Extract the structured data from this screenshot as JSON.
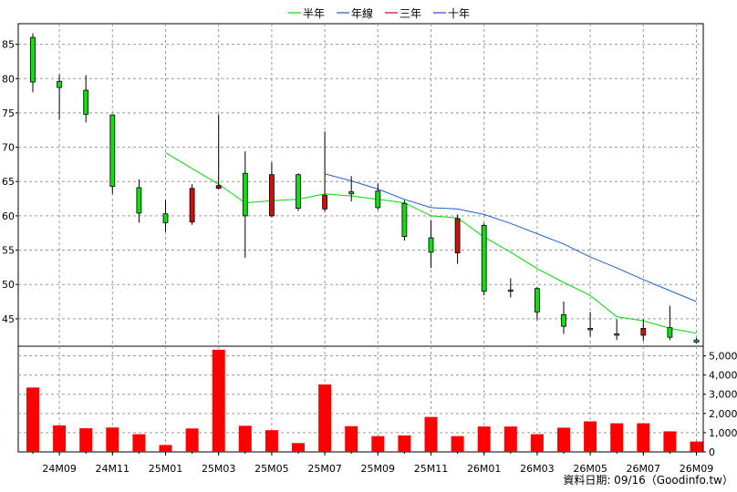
{
  "legend": [
    {
      "label": "半年",
      "color": "#00dd00"
    },
    {
      "label": "年線",
      "color": "#1a5fd6"
    },
    {
      "label": "三年",
      "color": "#cc0022"
    },
    {
      "label": "十年",
      "color": "#5533cc"
    }
  ],
  "footer": "資料日期: 09/16（Goodinfo.tw）",
  "colors": {
    "up": "#11dd11",
    "down": "#cc1111",
    "volume": "#ff0000",
    "grid": "#999999"
  },
  "chart_data": [
    {
      "type": "candlestick",
      "title": "",
      "ylim": [
        41,
        88
      ],
      "yticks": [
        45,
        50,
        55,
        60,
        65,
        70,
        75,
        80,
        85
      ],
      "grid": true,
      "legend_position": "top-center",
      "categories": [
        "24M08",
        "24M09",
        "24M10",
        "24M11",
        "24M12",
        "25M01",
        "25M02",
        "25M03",
        "25M04",
        "25M05",
        "25M06",
        "25M07",
        "25M08",
        "25M09",
        "25M10",
        "25M11",
        "25M12",
        "26M01",
        "26M02",
        "26M03",
        "26M04",
        "26M05",
        "26M06",
        "26M07",
        "26M08",
        "26M09"
      ],
      "xtick_labels": [
        "24M09",
        "24M11",
        "25M01",
        "25M03",
        "25M05",
        "25M07",
        "25M09",
        "25M11",
        "26M01",
        "26M03",
        "26M05",
        "26M07",
        "26M09"
      ],
      "candles": [
        {
          "open": 79.5,
          "close": 86.0,
          "high": 86.6,
          "low": 78.0
        },
        {
          "open": 78.7,
          "close": 79.6,
          "high": 80.6,
          "low": 74.0
        },
        {
          "open": 74.8,
          "close": 78.3,
          "high": 80.5,
          "low": 73.6
        },
        {
          "open": 64.3,
          "close": 74.7,
          "high": 74.8,
          "low": 63.2
        },
        {
          "open": 60.4,
          "close": 64.1,
          "high": 65.3,
          "low": 59.0
        },
        {
          "open": 59.0,
          "close": 60.3,
          "high": 62.3,
          "low": 57.7
        },
        {
          "open": 64.0,
          "close": 59.1,
          "high": 64.6,
          "low": 58.7
        },
        {
          "open": 64.4,
          "close": 64.0,
          "high": 74.8,
          "low": 63.9
        },
        {
          "open": 60.0,
          "close": 66.2,
          "high": 69.4,
          "low": 53.9
        },
        {
          "open": 66.0,
          "close": 60.0,
          "high": 67.8,
          "low": 59.8
        },
        {
          "open": 61.1,
          "close": 66.0,
          "high": 66.2,
          "low": 60.7
        },
        {
          "open": 63.0,
          "close": 61.0,
          "high": 72.3,
          "low": 60.6
        },
        {
          "open": 63.2,
          "close": 63.5,
          "high": 65.8,
          "low": 62.1
        },
        {
          "open": 61.2,
          "close": 63.6,
          "high": 64.7,
          "low": 60.9
        },
        {
          "open": 57.0,
          "close": 61.8,
          "high": 62.3,
          "low": 56.4
        },
        {
          "open": 54.7,
          "close": 56.8,
          "high": 59.4,
          "low": 52.4
        },
        {
          "open": 59.6,
          "close": 54.6,
          "high": 60.2,
          "low": 53.0
        },
        {
          "open": 49.0,
          "close": 58.6,
          "high": 58.9,
          "low": 48.4
        },
        {
          "open": 49.0,
          "close": 49.2,
          "high": 50.9,
          "low": 48.1
        },
        {
          "open": 46.0,
          "close": 49.4,
          "high": 49.6,
          "low": 44.8
        },
        {
          "open": 43.9,
          "close": 45.6,
          "high": 47.5,
          "low": 42.8
        },
        {
          "open": 43.4,
          "close": 43.6,
          "high": 46.0,
          "low": 42.4
        },
        {
          "open": 42.7,
          "close": 42.8,
          "high": 44.9,
          "low": 41.9
        },
        {
          "open": 43.6,
          "close": 42.6,
          "high": 44.9,
          "low": 41.8
        },
        {
          "open": 42.3,
          "close": 43.7,
          "high": 46.9,
          "low": 41.9
        },
        {
          "open": 41.6,
          "close": 41.9,
          "high": 42.2,
          "low": 41.4
        }
      ],
      "series": [
        {
          "name": "半年",
          "color": "#00dd00",
          "values": [
            null,
            null,
            null,
            null,
            null,
            69.2,
            66.9,
            64.6,
            61.9,
            62.2,
            62.4,
            63.2,
            62.9,
            62.4,
            61.9,
            60.0,
            59.7,
            56.9,
            54.7,
            52.3,
            50.3,
            48.4,
            45.3,
            44.7,
            43.6,
            42.9
          ]
        },
        {
          "name": "年線",
          "color": "#1a5fd6",
          "values": [
            null,
            null,
            null,
            null,
            null,
            null,
            null,
            null,
            null,
            null,
            null,
            66.1,
            65.1,
            63.9,
            62.4,
            61.2,
            61.0,
            60.2,
            58.9,
            57.4,
            55.9,
            54.0,
            52.4,
            50.7,
            49.1,
            47.5
          ]
        }
      ]
    },
    {
      "type": "bar",
      "title": "",
      "ylim": [
        0,
        5500
      ],
      "yticks": [
        0,
        1000,
        2000,
        3000,
        4000,
        5000
      ],
      "ytick_labels": [
        "0",
        "1,000",
        "2,000",
        "3,000",
        "4,000",
        "5,000"
      ],
      "categories": [
        "24M08",
        "24M09",
        "24M10",
        "24M11",
        "24M12",
        "25M01",
        "25M02",
        "25M03",
        "25M04",
        "25M05",
        "25M06",
        "25M07",
        "25M08",
        "25M09",
        "25M10",
        "25M11",
        "25M12",
        "26M01",
        "26M02",
        "26M03",
        "26M04",
        "26M05",
        "26M06",
        "26M07",
        "26M08",
        "26M09"
      ],
      "values": [
        3350,
        1380,
        1230,
        1270,
        920,
        360,
        1220,
        5320,
        1360,
        1130,
        460,
        3510,
        1340,
        820,
        860,
        1820,
        820,
        1320,
        1320,
        920,
        1260,
        1590,
        1490,
        1490,
        1070,
        540
      ]
    }
  ]
}
